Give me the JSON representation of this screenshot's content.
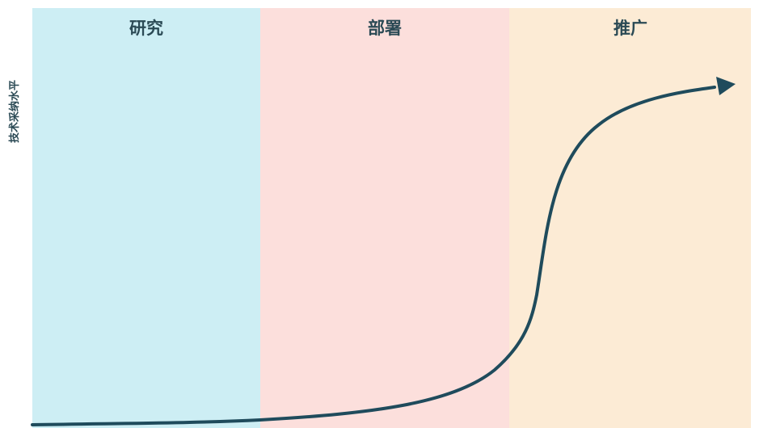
{
  "y_axis_label": "技术采纳水平",
  "phases": [
    {
      "label": "研究",
      "color": "#cdeef4"
    },
    {
      "label": "部署",
      "color": "#fcdfdc"
    },
    {
      "label": "推广",
      "color": "#fcebd5"
    }
  ],
  "colors": {
    "curve": "#1f4b5c",
    "label_text": "#2b4a55"
  }
}
